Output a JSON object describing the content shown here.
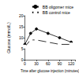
{
  "chart_data": {
    "type": "line",
    "x_label": "Time after glucose injection (minutes)",
    "y_label": "Glucose (mmol/L)",
    "x": [
      0,
      15,
      30,
      60,
      90,
      120
    ],
    "series": [
      {
        "name": "BB oligomer mice",
        "color": "#000000",
        "marker": "filled",
        "values": [
          7,
          12,
          14,
          12,
          10,
          8
        ]
      },
      {
        "name": "BB control mice",
        "color": "#000000",
        "marker": "open",
        "values": [
          6,
          9,
          9,
          8,
          7,
          7
        ]
      }
    ],
    "xlim": [
      0,
      130
    ],
    "xticks": [
      0,
      30,
      60,
      90,
      120
    ],
    "ylim": [
      0,
      20
    ],
    "yticks": [
      0,
      5,
      10,
      15,
      20
    ],
    "grid": false,
    "legend": "top-right"
  }
}
